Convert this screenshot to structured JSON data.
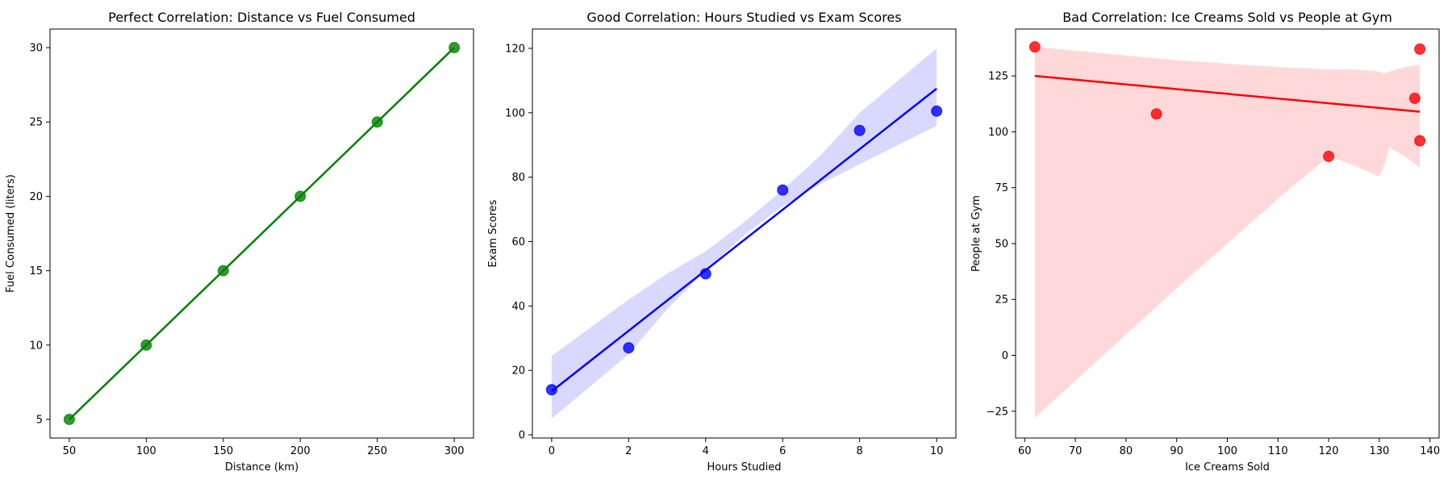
{
  "chart_data": [
    {
      "type": "scatter",
      "title": "Perfect Correlation: Distance vs Fuel Consumed",
      "xlabel": "Distance (km)",
      "ylabel": "Fuel Consumed (liters)",
      "xlim": [
        37.5,
        312.5
      ],
      "ylim": [
        3.75,
        31.25
      ],
      "xticks": [
        50,
        100,
        150,
        200,
        250,
        300
      ],
      "yticks": [
        5,
        10,
        15,
        20,
        25,
        30
      ],
      "color": "#008000",
      "band_color": "#008000",
      "series": [
        {
          "x": [
            50,
            100,
            150,
            200,
            250,
            300
          ],
          "y": [
            5,
            10,
            15,
            20,
            25,
            30
          ]
        }
      ],
      "regression": {
        "x": [
          50,
          300
        ],
        "y": [
          5,
          30
        ]
      },
      "ci_band": {
        "x": [
          50,
          300
        ],
        "lower": [
          5,
          30
        ],
        "upper": [
          5,
          30
        ]
      },
      "grid": false
    },
    {
      "type": "scatter",
      "title": "Good Correlation: Hours Studied vs Exam Scores",
      "xlabel": "Hours Studied",
      "ylabel": "Exam Scores",
      "xlim": [
        -0.5,
        10.5
      ],
      "ylim": [
        -1,
        126
      ],
      "xticks": [
        0,
        2,
        4,
        6,
        8,
        10
      ],
      "yticks": [
        0,
        20,
        40,
        60,
        80,
        100,
        120
      ],
      "color": "#0000ff",
      "band_color": "#0000ff",
      "series": [
        {
          "x": [
            0,
            2,
            4,
            6,
            8,
            10
          ],
          "y": [
            14,
            27,
            50,
            76,
            94.5,
            100.5
          ]
        }
      ],
      "regression": {
        "x": [
          0,
          10
        ],
        "y": [
          13.5,
          107.5
        ]
      },
      "ci_band": {
        "x": [
          0,
          2,
          3,
          4,
          5,
          6,
          7,
          8,
          10
        ],
        "lower": [
          5,
          25,
          39,
          51,
          62,
          71,
          78,
          84,
          96
        ],
        "upper": [
          24.5,
          42,
          50,
          57,
          66,
          76,
          87,
          100,
          120
        ]
      },
      "grid": false
    },
    {
      "type": "scatter",
      "title": "Bad Correlation: Ice Creams Sold vs People at Gym",
      "xlabel": "Ice Creams Sold",
      "ylabel": "People at Gym",
      "xlim": [
        58.2,
        141.8
      ],
      "ylim": [
        -37,
        146
      ],
      "xticks": [
        60,
        70,
        80,
        90,
        100,
        110,
        120,
        130,
        140
      ],
      "yticks": [
        -25,
        0,
        25,
        50,
        75,
        100,
        125
      ],
      "color": "#ff0000",
      "band_color": "#ff0000",
      "series": [
        {
          "x": [
            62,
            86,
            120,
            137,
            138,
            138
          ],
          "y": [
            138,
            108,
            89,
            115,
            96,
            137
          ]
        }
      ],
      "regression": {
        "x": [
          62,
          138
        ],
        "y": [
          125,
          109
        ]
      },
      "ci_band": {
        "x": [
          62,
          90,
          110,
          120,
          125,
          130,
          131,
          132,
          135,
          138
        ],
        "lower": [
          -28,
          30,
          70,
          89,
          85,
          80,
          85,
          93,
          89,
          84
        ],
        "upper": [
          138,
          132,
          129,
          128,
          128,
          127,
          126,
          127,
          129,
          130
        ]
      },
      "grid": false
    }
  ]
}
